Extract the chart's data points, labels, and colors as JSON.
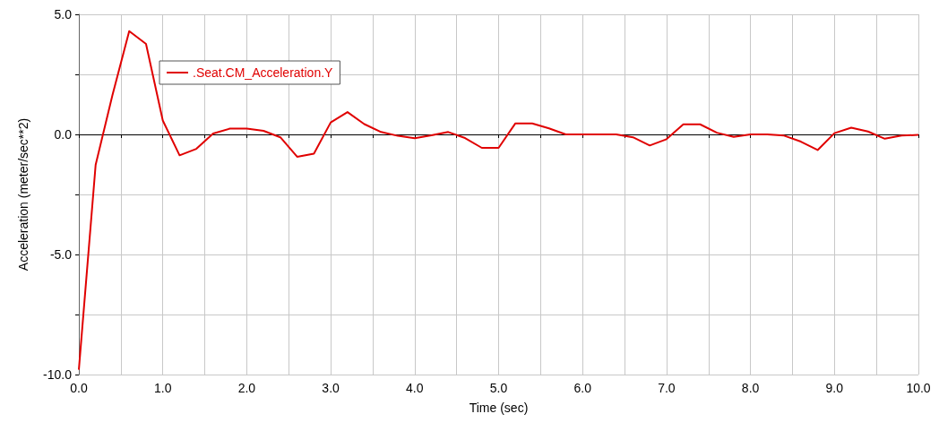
{
  "chart_data": {
    "type": "line",
    "xlabel": "Time (sec)",
    "ylabel": "Acceleration (meter/sec**2)",
    "x": [
      0,
      0.2,
      0.4,
      0.6,
      0.8,
      1.0,
      1.2,
      1.4,
      1.6,
      1.8,
      2.0,
      2.2,
      2.4,
      2.6,
      2.8,
      3.0,
      3.2,
      3.4,
      3.6,
      3.8,
      4.0,
      4.2,
      4.4,
      4.6,
      4.8,
      5.0,
      5.2,
      5.4,
      5.6,
      5.8,
      6.0,
      6.2,
      6.4,
      6.6,
      6.8,
      7.0,
      7.2,
      7.4,
      7.6,
      7.8,
      8.0,
      8.2,
      8.4,
      8.6,
      8.8,
      9.0,
      9.2,
      9.4,
      9.6,
      9.8,
      10.0
    ],
    "series": [
      {
        "name": ".Seat.CM_Acceleration.Y",
        "color": "#e00000",
        "values": [
          -9.8,
          -1.27,
          1.63,
          4.3,
          3.77,
          0.58,
          -0.87,
          -0.6,
          0.04,
          0.24,
          0.24,
          0.15,
          -0.12,
          -0.93,
          -0.8,
          0.5,
          0.93,
          0.43,
          0.1,
          -0.06,
          -0.16,
          -0.04,
          0.1,
          -0.15,
          -0.56,
          -0.56,
          0.46,
          0.46,
          0.25,
          0,
          0,
          0,
          0,
          -0.12,
          -0.46,
          -0.2,
          0.42,
          0.42,
          0.07,
          -0.1,
          0,
          0,
          -0.05,
          -0.3,
          -0.65,
          0.05,
          0.28,
          0.12,
          -0.18,
          -0.05,
          -0.02
        ]
      }
    ],
    "xlim": [
      0,
      10
    ],
    "xticks": [
      {
        "value": 0,
        "label": "0.0"
      },
      {
        "value": 0.5,
        "label": null
      },
      {
        "value": 1,
        "label": "1.0"
      },
      {
        "value": 1.5,
        "label": null
      },
      {
        "value": 2,
        "label": "2.0"
      },
      {
        "value": 2.5,
        "label": null
      },
      {
        "value": 3,
        "label": "3.0"
      },
      {
        "value": 3.5,
        "label": null
      },
      {
        "value": 4,
        "label": "4.0"
      },
      {
        "value": 4.5,
        "label": null
      },
      {
        "value": 5,
        "label": "5.0"
      },
      {
        "value": 5.5,
        "label": null
      },
      {
        "value": 6,
        "label": "6.0"
      },
      {
        "value": 6.5,
        "label": null
      },
      {
        "value": 7,
        "label": "7.0"
      },
      {
        "value": 7.5,
        "label": null
      },
      {
        "value": 8,
        "label": "8.0"
      },
      {
        "value": 8.5,
        "label": null
      },
      {
        "value": 9,
        "label": "9.0"
      },
      {
        "value": 9.5,
        "label": null
      },
      {
        "value": 10,
        "label": "10.0"
      }
    ],
    "ylim": [
      -10,
      5
    ],
    "yticks": [
      {
        "value": -10,
        "label": "-10.0"
      },
      {
        "value": -7.5,
        "label": null
      },
      {
        "value": -5,
        "label": "-5.0"
      },
      {
        "value": -2.5,
        "label": null
      },
      {
        "value": 0,
        "label": "0.0"
      },
      {
        "value": 2.5,
        "label": null
      },
      {
        "value": 5,
        "label": "5.0"
      }
    ],
    "ref_lines": [
      {
        "axis": "y",
        "value": 0,
        "color": "#000000"
      }
    ],
    "grid": true,
    "legend": "top left",
    "marker": "none",
    "line_style": "solid"
  }
}
